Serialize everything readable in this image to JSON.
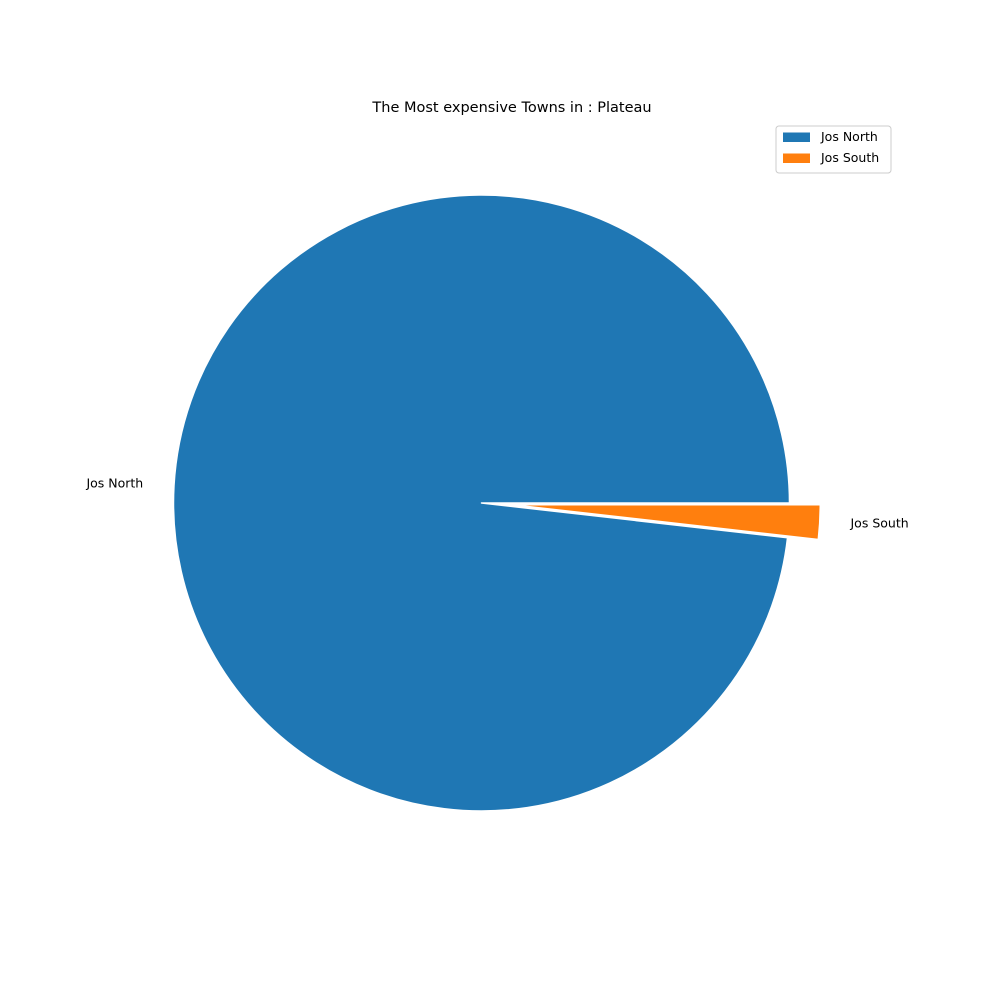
{
  "chart_data": {
    "type": "pie",
    "title": "The Most expensive Towns in : Plateau",
    "categories": [
      "Jos North",
      "Jos South"
    ],
    "values": [
      98.2,
      1.8
    ],
    "colors": [
      "#1f77b4",
      "#ff7f0e"
    ],
    "explode": [
      0,
      0.1
    ],
    "start_angle_deg": 0,
    "direction": "counterclockwise",
    "legend": {
      "placement": "upper-right",
      "entries": [
        "Jos North",
        "Jos South"
      ]
    }
  }
}
